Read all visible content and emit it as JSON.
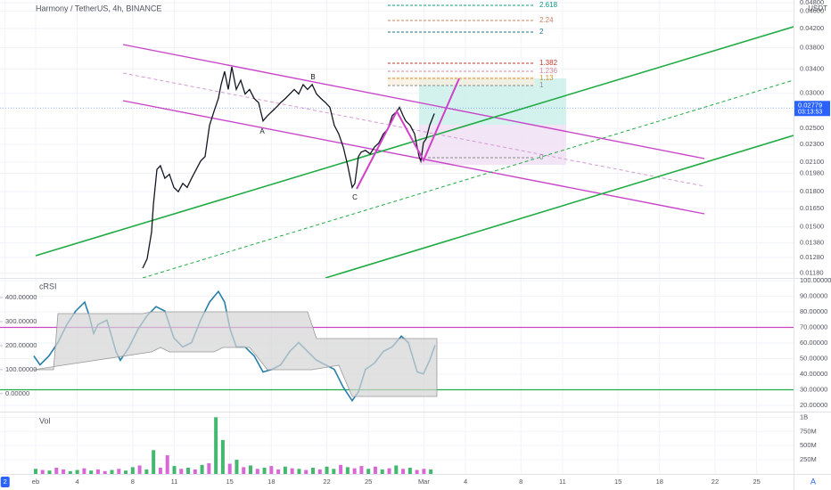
{
  "chart_data": [
    {
      "type": "line",
      "title": "Harmony / TetherUS, 4h, BINANCE",
      "unit": "USDT",
      "color": "#131722",
      "log_scale": true,
      "xlim": [
        -1.57,
        55.66
      ],
      "ylim": [
        0.0115,
        0.0487
      ],
      "yticks": [
        {
          "value": 0.048,
          "label": "0.04800"
        },
        {
          "value": 0.046,
          "label": "0.04600"
        },
        {
          "value": 0.042,
          "label": "0.04200"
        },
        {
          "value": 0.038,
          "label": "0.03800"
        },
        {
          "value": 0.034,
          "label": "0.03400"
        },
        {
          "value": 0.03,
          "label": "0.03000"
        },
        {
          "value": 0.025,
          "label": "0.02500"
        },
        {
          "value": 0.023,
          "label": "0.02300"
        },
        {
          "value": 0.021,
          "label": "0.02100"
        },
        {
          "value": 0.0198,
          "label": "0.01980"
        },
        {
          "value": 0.018,
          "label": "0.01800"
        },
        {
          "value": 0.0165,
          "label": "0.01650"
        },
        {
          "value": 0.015,
          "label": "0.01500"
        },
        {
          "value": 0.0138,
          "label": "0.01380"
        },
        {
          "value": 0.0128,
          "label": "0.01280"
        },
        {
          "value": 0.0118,
          "label": "0.01180"
        }
      ],
      "last_price": 0.02779,
      "last_price_color": "#2962ff",
      "countdown": "03:13:53",
      "x": [
        8.72,
        9.04,
        9.36,
        9.49,
        9.75,
        10.0,
        10.32,
        10.65,
        10.97,
        11.29,
        11.61,
        11.93,
        12.25,
        12.58,
        12.9,
        13.22,
        13.54,
        13.86,
        14.18,
        14.38,
        14.63,
        14.89,
        15.15,
        15.47,
        15.79,
        16.11,
        16.43,
        16.76,
        17.08,
        17.4,
        17.72,
        18.04,
        18.36,
        18.68,
        19.01,
        19.33,
        19.65,
        19.97,
        20.29,
        20.61,
        20.94,
        21.26,
        21.58,
        21.9,
        22.22,
        22.54,
        22.86,
        23.19,
        23.51,
        23.83,
        24.02,
        24.28,
        24.47,
        24.79,
        25.12,
        25.44,
        25.76,
        26.08,
        26.4,
        26.72,
        27.05,
        27.24,
        27.5,
        27.69,
        28.01,
        28.33,
        28.65,
        28.78,
        28.97,
        29.17,
        29.42,
        29.75
      ],
      "values": [
        0.0121,
        0.0127,
        0.0146,
        0.0168,
        0.0202,
        0.0206,
        0.0193,
        0.0197,
        0.0184,
        0.018,
        0.0188,
        0.0184,
        0.0193,
        0.0202,
        0.0211,
        0.0216,
        0.0254,
        0.0273,
        0.0292,
        0.0314,
        0.0336,
        0.0306,
        0.0344,
        0.0306,
        0.0321,
        0.0299,
        0.0306,
        0.0292,
        0.0286,
        0.026,
        0.0267,
        0.0273,
        0.0279,
        0.0286,
        0.0292,
        0.0299,
        0.0306,
        0.0299,
        0.0314,
        0.0306,
        0.0314,
        0.0299,
        0.0292,
        0.0286,
        0.0279,
        0.0254,
        0.0243,
        0.0227,
        0.0206,
        0.0184,
        0.0188,
        0.0216,
        0.0221,
        0.0223,
        0.0219,
        0.0227,
        0.0232,
        0.0243,
        0.0249,
        0.0267,
        0.0273,
        0.0279,
        0.0267,
        0.026,
        0.0254,
        0.0243,
        0.0216,
        0.0211,
        0.0232,
        0.0237,
        0.0254,
        0.027
      ]
    },
    {
      "type": "line",
      "title": "cRSI",
      "color": "#2a7fa8",
      "xlim": [
        -1.57,
        55.66
      ],
      "ylim": [
        16,
        101.7
      ],
      "yticks": [
        {
          "value": 100,
          "label": "100.00000"
        },
        {
          "value": 90,
          "label": "90.00000"
        },
        {
          "value": 80,
          "label": "80.00000"
        },
        {
          "value": 70,
          "label": "70.00000"
        },
        {
          "value": 60,
          "label": "60.00000"
        },
        {
          "value": 50,
          "label": "50.00000"
        },
        {
          "value": 40,
          "label": "40.00000"
        },
        {
          "value": 30,
          "label": "30.00000"
        },
        {
          "value": 20,
          "label": "20.00000"
        }
      ],
      "y2lim": [
        -75,
        482
      ],
      "y2ticks": [
        {
          "value": 400,
          "label": "400.00000"
        },
        {
          "value": 300,
          "label": "300.00000"
        },
        {
          "value": 200,
          "label": "200.00000"
        },
        {
          "value": 100,
          "label": "100.00000"
        },
        {
          "value": 0,
          "label": "0.00000"
        }
      ],
      "levels": [
        {
          "value": 70,
          "color": "#c845c8"
        },
        {
          "value": 30,
          "color": "#22ab44"
        }
      ],
      "x": [
        0.87,
        1.32,
        1.96,
        2.61,
        3.25,
        3.89,
        4.54,
        4.86,
        5.18,
        5.5,
        6.14,
        6.79,
        7.11,
        7.75,
        8.4,
        9.04,
        9.68,
        10.32,
        10.97,
        11.61,
        12.25,
        12.9,
        13.54,
        14.18,
        14.63,
        15.02,
        15.47,
        16.11,
        16.76,
        17.4,
        18.04,
        18.68,
        19.33,
        19.97,
        20.61,
        21.26,
        21.9,
        22.54,
        23.19,
        23.83,
        24.28,
        24.79,
        25.44,
        26.08,
        26.72,
        27.37,
        27.88,
        28.52,
        28.97,
        29.42,
        29.81
      ],
      "values": [
        51.7,
        46,
        51.7,
        60.3,
        71.8,
        80.5,
        86.2,
        77.6,
        66.1,
        71.8,
        74.7,
        54.6,
        48.9,
        57.5,
        69,
        77.6,
        83.3,
        80.5,
        63.2,
        57.5,
        60.3,
        74.7,
        86.2,
        93.1,
        86.2,
        69,
        57.5,
        57.5,
        51.7,
        41.4,
        43.1,
        46,
        54.6,
        60.3,
        54.6,
        48.9,
        46,
        43.1,
        31.6,
        23,
        28.7,
        43.1,
        47.1,
        54.6,
        57.5,
        64.4,
        60.3,
        41.4,
        40.2,
        48.9,
        58.6
      ]
    },
    {
      "type": "bar",
      "title": "Vol",
      "xlim": [
        -1.57,
        55.66
      ],
      "ylim": [
        0,
        1100000000
      ],
      "yticks": [
        {
          "value": 1000000000,
          "label": "1B"
        },
        {
          "value": 750000000,
          "label": "750M"
        },
        {
          "value": 500000000,
          "label": "500M"
        },
        {
          "value": 250000000,
          "label": "250M"
        }
      ],
      "xticks": [
        {
          "value": -1.2,
          "label": "2"
        },
        {
          "value": 1,
          "label": "eb"
        },
        4,
        8,
        11,
        15,
        18,
        22,
        25,
        {
          "value": 29,
          "label": "Mar"
        },
        {
          "value": 32,
          "label": "4"
        },
        {
          "value": 36,
          "label": "8"
        },
        {
          "value": 39,
          "label": "11"
        },
        {
          "value": 43,
          "label": "15"
        },
        {
          "value": 46,
          "label": "18"
        },
        {
          "value": 50,
          "label": "22"
        },
        {
          "value": 53,
          "label": "25"
        }
      ],
      "x": [
        1,
        1.5,
        2,
        2.5,
        3,
        3.5,
        4,
        4.5,
        5,
        5.5,
        6,
        6.5,
        7,
        7.5,
        8,
        8.5,
        9,
        9.5,
        10,
        10.5,
        11,
        11.5,
        12,
        12.5,
        13,
        13.5,
        14,
        14.5,
        15,
        15.5,
        16,
        16.5,
        17,
        17.5,
        18,
        18.5,
        19,
        19.5,
        20,
        20.5,
        21,
        21.5,
        22,
        22.5,
        23,
        23.5,
        24,
        24.5,
        25,
        25.5,
        26,
        26.5,
        27,
        27.5,
        28,
        28.5,
        29,
        29.5
      ],
      "values": [
        90000000,
        70000000,
        60000000,
        110000000,
        80000000,
        50000000,
        70000000,
        100000000,
        60000000,
        80000000,
        50000000,
        70000000,
        90000000,
        60000000,
        120000000,
        150000000,
        80000000,
        420000000,
        110000000,
        330000000,
        140000000,
        90000000,
        110000000,
        80000000,
        160000000,
        190000000,
        1000000000,
        600000000,
        180000000,
        250000000,
        120000000,
        150000000,
        90000000,
        110000000,
        140000000,
        80000000,
        130000000,
        100000000,
        90000000,
        70000000,
        110000000,
        80000000,
        130000000,
        90000000,
        160000000,
        120000000,
        100000000,
        140000000,
        90000000,
        130000000,
        80000000,
        100000000,
        150000000,
        90000000,
        110000000,
        70000000,
        90000000,
        80000000
      ],
      "colors": [
        "#22ab55",
        "#d04fd0",
        "#22ab55",
        "#d04fd0",
        "#d04fd0",
        "#22ab55",
        "#22ab55",
        "#d04fd0",
        "#22ab55",
        "#d04fd0",
        "#d04fd0",
        "#22ab55",
        "#d04fd0",
        "#22ab55",
        "#22ab55",
        "#d04fd0",
        "#22ab55",
        "#22ab55",
        "#d04fd0",
        "#d04fd0",
        "#22ab55",
        "#d04fd0",
        "#22ab55",
        "#d04fd0",
        "#22ab55",
        "#d04fd0",
        "#22ab55",
        "#22ab55",
        "#d04fd0",
        "#22ab55",
        "#d04fd0",
        "#22ab55",
        "#d04fd0",
        "#22ab55",
        "#d04fd0",
        "#d04fd0",
        "#22ab55",
        "#d04fd0",
        "#22ab55",
        "#d04fd0",
        "#22ab55",
        "#d04fd0",
        "#22ab55",
        "#22ab55",
        "#d04fd0",
        "#22ab55",
        "#d04fd0",
        "#d04fd0",
        "#22ab55",
        "#d04fd0",
        "#22ab55",
        "#d04fd0",
        "#22ab55",
        "#d04fd0",
        "#22ab55",
        "#d04fd0",
        "#d04fd0",
        "#22ab55"
      ]
    }
  ],
  "overlay": {
    "fib_labels": [
      {
        "text": "2.618",
        "color": "#089981"
      },
      {
        "text": "2.24",
        "color": "#c9805f"
      },
      {
        "text": "2",
        "color": "#1c6f8c"
      },
      {
        "text": "1.382",
        "color": "#c0392b"
      },
      {
        "text": "1.236",
        "color": "#d0849a"
      },
      {
        "text": "1.13",
        "color": "#d4912e"
      },
      {
        "text": "1",
        "color": "#888888"
      },
      {
        "text": "0",
        "color": "#888888"
      }
    ],
    "wave_labels": [
      "A",
      "B",
      "C"
    ],
    "auto_button": "A"
  }
}
